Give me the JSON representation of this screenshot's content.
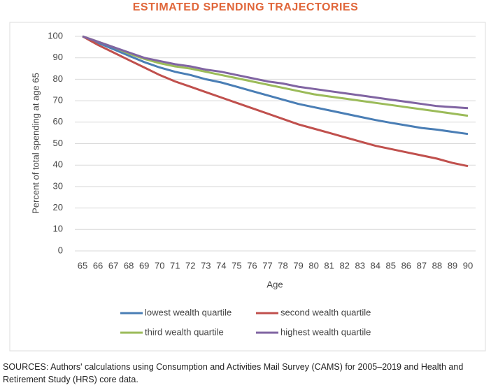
{
  "chart_data": {
    "type": "line",
    "title": "ESTIMATED SPENDING TRAJECTORIES",
    "x_label": "Age",
    "y_label": "Percent of total spending at age 65",
    "categories": [
      "65",
      "66",
      "67",
      "68",
      "69",
      "70",
      "71",
      "72",
      "73",
      "74",
      "75",
      "76",
      "77",
      "78",
      "79",
      "80",
      "81",
      "82",
      "83",
      "84",
      "85",
      "86",
      "87",
      "88",
      "89",
      "90"
    ],
    "ylim": [
      0,
      100
    ],
    "yticks": [
      0,
      10,
      20,
      30,
      40,
      50,
      60,
      70,
      80,
      90,
      100
    ],
    "grid": true,
    "legend": "bottom",
    "series": [
      {
        "name": "lowest wealth quartile",
        "color": "#4a7eb5",
        "values": [
          100,
          97,
          94,
          91,
          88,
          85.5,
          83.5,
          82,
          80,
          78.5,
          76.5,
          74.5,
          72.5,
          70.5,
          68.5,
          67,
          65.5,
          64,
          62.5,
          61,
          59.7,
          58.5,
          57.3,
          56.5,
          55.5,
          54.5
        ]
      },
      {
        "name": "second wealth quartile",
        "color": "#c0504d",
        "values": [
          100,
          96,
          92.5,
          89,
          85.5,
          82,
          79,
          76.5,
          74,
          71.5,
          69,
          66.5,
          64,
          61.5,
          59,
          57,
          55,
          53,
          51,
          49,
          47.5,
          46,
          44.5,
          43,
          41,
          39.5
        ]
      },
      {
        "name": "third wealth quartile",
        "color": "#9bbb59",
        "values": [
          100,
          97.5,
          95,
          92,
          89.5,
          87.5,
          86,
          85,
          83.5,
          82,
          80.5,
          79,
          77.5,
          76,
          74.5,
          73,
          72,
          71,
          70,
          69,
          68,
          67,
          66,
          65,
          64,
          63
        ]
      },
      {
        "name": "highest wealth quartile",
        "color": "#8064a2",
        "values": [
          100,
          97.5,
          95,
          92.5,
          90,
          88.5,
          87,
          86,
          84.5,
          83.5,
          82,
          80.5,
          79,
          78,
          76.5,
          75.5,
          74.5,
          73.5,
          72.5,
          71.5,
          70.5,
          69.5,
          68.5,
          67.5,
          67,
          66.5
        ]
      }
    ]
  },
  "footer": "SOURCES: Authors' calculations using Consumption and Activities Mail Survey (CAMS) for 2005–2019 and Health and Retirement Study (HRS) core data."
}
